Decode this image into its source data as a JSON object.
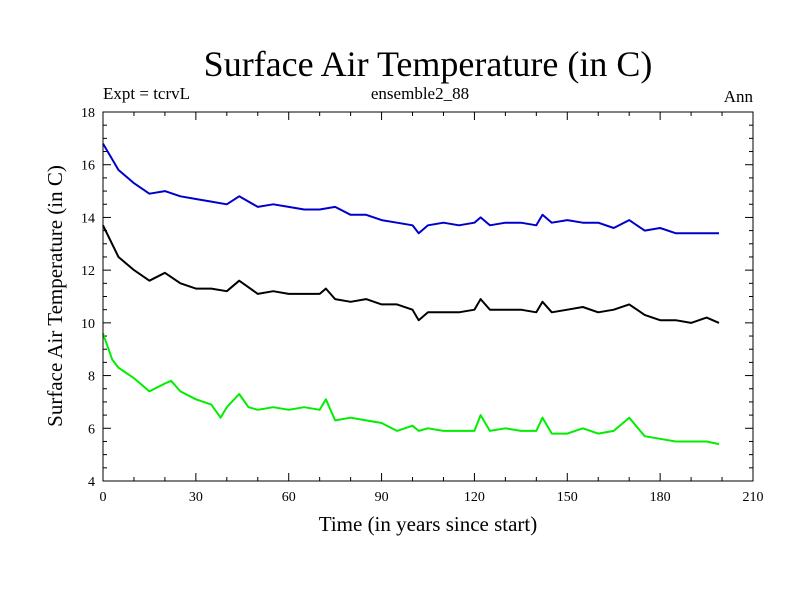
{
  "chart_data": {
    "type": "line",
    "title": "Surface Air Temperature (in C)",
    "left_label": "Expt = tcrvL",
    "center_label": "ensemble2_88",
    "right_label": "Ann",
    "xlabel": "Time (in years since start)",
    "ylabel": "Surface Air Temperature (in C)",
    "xlim": [
      0,
      210
    ],
    "ylim": [
      4,
      18
    ],
    "xticks": [
      0,
      30,
      60,
      90,
      120,
      150,
      180,
      210
    ],
    "yticks": [
      4,
      6,
      8,
      10,
      12,
      14,
      16,
      18
    ],
    "grid": false,
    "series": [
      {
        "color": "#0000cc",
        "x": [
          0,
          5,
          10,
          15,
          20,
          25,
          30,
          35,
          40,
          44,
          50,
          55,
          60,
          65,
          70,
          75,
          80,
          85,
          90,
          95,
          100,
          102,
          105,
          110,
          115,
          120,
          122,
          125,
          130,
          135,
          140,
          142,
          145,
          150,
          155,
          160,
          165,
          170,
          175,
          180,
          185,
          190,
          195,
          199
        ],
        "y": [
          16.8,
          15.8,
          15.3,
          14.9,
          15.0,
          14.8,
          14.7,
          14.6,
          14.5,
          14.8,
          14.4,
          14.5,
          14.4,
          14.3,
          14.3,
          14.4,
          14.1,
          14.1,
          13.9,
          13.8,
          13.7,
          13.4,
          13.7,
          13.8,
          13.7,
          13.8,
          14.0,
          13.7,
          13.8,
          13.8,
          13.7,
          14.1,
          13.8,
          13.9,
          13.8,
          13.8,
          13.6,
          13.9,
          13.5,
          13.6,
          13.4,
          13.4,
          13.4,
          13.4
        ]
      },
      {
        "color": "#000000",
        "x": [
          0,
          5,
          10,
          15,
          20,
          25,
          30,
          35,
          40,
          44,
          50,
          55,
          60,
          65,
          70,
          72,
          75,
          80,
          85,
          90,
          95,
          100,
          102,
          105,
          110,
          115,
          120,
          122,
          125,
          130,
          135,
          140,
          142,
          145,
          150,
          155,
          160,
          165,
          170,
          175,
          180,
          185,
          190,
          195,
          199
        ],
        "y": [
          13.7,
          12.5,
          12.0,
          11.6,
          11.9,
          11.5,
          11.3,
          11.3,
          11.2,
          11.6,
          11.1,
          11.2,
          11.1,
          11.1,
          11.1,
          11.3,
          10.9,
          10.8,
          10.9,
          10.7,
          10.7,
          10.5,
          10.1,
          10.4,
          10.4,
          10.4,
          10.5,
          10.9,
          10.5,
          10.5,
          10.5,
          10.4,
          10.8,
          10.4,
          10.5,
          10.6,
          10.4,
          10.5,
          10.7,
          10.3,
          10.1,
          10.1,
          10.0,
          10.2,
          10.0
        ]
      },
      {
        "color": "#00ee00",
        "x": [
          0,
          3,
          5,
          10,
          15,
          20,
          22,
          25,
          30,
          35,
          38,
          40,
          44,
          47,
          50,
          55,
          60,
          65,
          70,
          72,
          75,
          80,
          85,
          90,
          95,
          100,
          102,
          105,
          110,
          115,
          120,
          122,
          125,
          130,
          135,
          140,
          142,
          145,
          150,
          155,
          160,
          165,
          170,
          175,
          180,
          185,
          190,
          195,
          199
        ],
        "y": [
          9.6,
          8.6,
          8.3,
          7.9,
          7.4,
          7.7,
          7.8,
          7.4,
          7.1,
          6.9,
          6.4,
          6.8,
          7.3,
          6.8,
          6.7,
          6.8,
          6.7,
          6.8,
          6.7,
          7.1,
          6.3,
          6.4,
          6.3,
          6.2,
          5.9,
          6.1,
          5.9,
          6.0,
          5.9,
          5.9,
          5.9,
          6.5,
          5.9,
          6.0,
          5.9,
          5.9,
          6.4,
          5.8,
          5.8,
          6.0,
          5.8,
          5.9,
          6.4,
          5.7,
          5.6,
          5.5,
          5.5,
          5.5,
          5.4
        ]
      }
    ]
  }
}
